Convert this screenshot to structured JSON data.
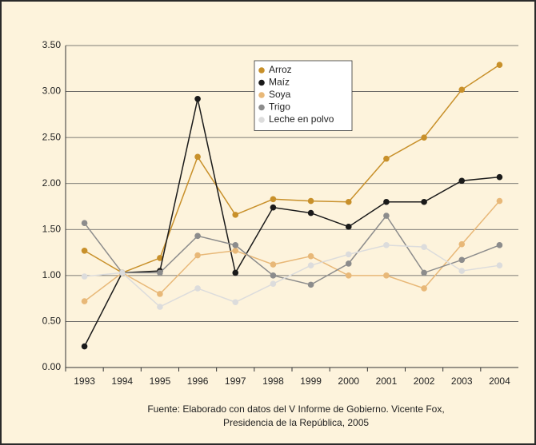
{
  "chart_data": {
    "type": "line",
    "categories": [
      "1993",
      "1994",
      "1995",
      "1996",
      "1997",
      "1998",
      "1999",
      "2000",
      "2001",
      "2002",
      "2003",
      "2004"
    ],
    "series": [
      {
        "name": "Arroz",
        "color": "#c8902a",
        "values": [
          1.27,
          1.03,
          1.19,
          2.29,
          1.66,
          1.83,
          1.81,
          1.8,
          2.27,
          2.5,
          3.02,
          3.29
        ]
      },
      {
        "name": "Maíz",
        "color": "#1a1a1a",
        "values": [
          0.23,
          1.03,
          1.05,
          2.92,
          1.03,
          1.74,
          1.68,
          1.53,
          1.8,
          1.8,
          2.03,
          2.07
        ]
      },
      {
        "name": "Soya",
        "color": "#e8b878",
        "values": [
          0.72,
          1.03,
          0.8,
          1.22,
          1.27,
          1.12,
          1.21,
          1.0,
          1.0,
          0.86,
          1.34,
          1.81
        ]
      },
      {
        "name": "Trigo",
        "color": "#8c8c8c",
        "values": [
          1.57,
          1.03,
          1.03,
          1.43,
          1.33,
          1.0,
          0.9,
          1.13,
          1.65,
          1.03,
          1.17,
          1.33
        ]
      },
      {
        "name": "Leche en polvo",
        "color": "#dcdcdc",
        "values": [
          0.99,
          1.03,
          0.66,
          0.86,
          0.71,
          0.91,
          1.11,
          1.23,
          1.33,
          1.31,
          1.05,
          1.11
        ]
      }
    ],
    "ylim": [
      0,
      3.5
    ],
    "yticks": [
      {
        "value": 0,
        "label": "0.00"
      },
      {
        "value": 0.5,
        "label": "0.50"
      },
      {
        "value": 1,
        "label": "1.00"
      },
      {
        "value": 1.5,
        "label": "1.50"
      },
      {
        "value": 2,
        "label": "2.00"
      },
      {
        "value": 2.5,
        "label": "2.50"
      },
      {
        "value": 3,
        "label": "3.00"
      },
      {
        "value": 3.5,
        "label": "3.50"
      }
    ],
    "grid": true,
    "legend": "top",
    "source": [
      "Fuente: Elaborado con datos del V Informe de Gobierno. Vicente Fox,",
      "Presidencia de la República, 2005"
    ]
  }
}
